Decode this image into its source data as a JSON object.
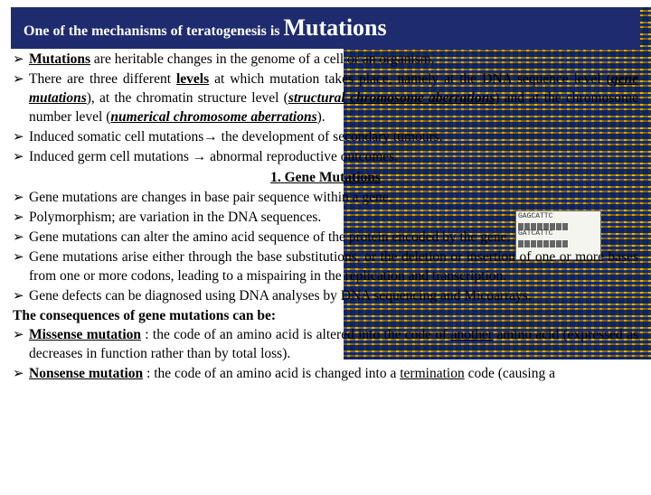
{
  "header": {
    "lead": "One of the mechanisms of teratogenesis is ",
    "main": "Mutations"
  },
  "bullets": {
    "b1_pre": "Mutations",
    "b1_post": " are heritable changes in the genome of a cell or an organism.",
    "b2_a": "There are three different ",
    "b2_b": "levels",
    "b2_c": " at which mutation takes place, namely at the DNA sequence level (",
    "b2_d": "gene mutations",
    "b2_e": "), at the chromatin structure level (",
    "b2_f": "structural chromosome aberrations",
    "b2_g": ") and at the chromosome number level (",
    "b2_h": "numerical chromosome aberrations",
    "b2_i": ").",
    "b3_a": "Induced somatic cell mutations",
    "b3_arrow": "→",
    "b3_b": " the development of secondary tumours.",
    "b4_a": "Induced germ cell mutations ",
    "b4_arrow": "→",
    "b4_b": " abnormal reproductive outcomes.",
    "section1_num": "1.",
    "section1_title": "Gene Mutations",
    "b5": "Gene mutations are changes in base pair sequence within a gene.",
    "b6": "Polymorphism; are variation in the DNA sequences.",
    "b7": "Gene mutations can alter the amino acid sequence of the protein encoded by the gene.",
    "b8": "Gene mutations arise either through the base substitutions, or the deletion or insertion of one or more bases from one or more codons, leading to a mispairing in the replication and transcription.",
    "b9": "Gene defects can be diagnosed using DNA analyses by DNA sequencing and Micoarrays.",
    "conseq": "The consequences of gene mutations can be:",
    "b10_a": "Missense mutation",
    "b10_b": " : the code of an amino acid is altered into the code of ",
    "b10_c": "another",
    "b10_d": " amino acid (expressed as decreases in function rather than by total loss).",
    "b11_a": "Nonsense mutation",
    "b11_b": " : the code of an amino acid is changed into a ",
    "b11_c": "termination",
    "b11_d": " code (causing a"
  },
  "inset": {
    "line1": "GAGCATTC",
    "line2": "GATCATTC"
  },
  "style": {
    "banner_bg": "#1e2c6f",
    "banner_text": "#ffffff",
    "body_bg": "#ffffff",
    "text_color": "#000000"
  }
}
